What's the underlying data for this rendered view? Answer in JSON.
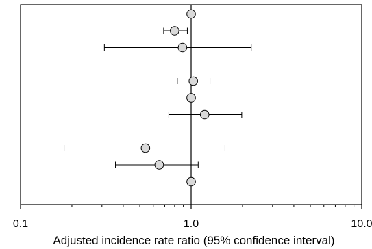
{
  "chart_data": {
    "type": "scatter",
    "subtype": "forest-plot",
    "x_scale": "log",
    "xlim": [
      0.1,
      10.0
    ],
    "xlabel": "Adjusted incidence rate ratio (95% confidence interval)",
    "ylabel": "",
    "title": "",
    "x_tick_labels": [
      "0.1",
      "1.0",
      "10.0"
    ],
    "x_tick_values": [
      0.1,
      1.0,
      10.0
    ],
    "reference_line": 1.0,
    "grid": false,
    "legend": "none",
    "groups": [
      {
        "rows": [
          {
            "estimate": 1.0,
            "lower": null,
            "upper": null
          },
          {
            "estimate": 0.8,
            "lower": 0.69,
            "upper": 0.95
          },
          {
            "estimate": 0.89,
            "lower": 0.31,
            "upper": 2.25
          }
        ]
      },
      {
        "rows": [
          {
            "estimate": 1.03,
            "lower": 0.83,
            "upper": 1.29
          },
          {
            "estimate": 1.0,
            "lower": null,
            "upper": null
          },
          {
            "estimate": 1.2,
            "lower": 0.74,
            "upper": 1.98
          }
        ]
      },
      {
        "rows": [
          {
            "estimate": 0.54,
            "lower": 0.18,
            "upper": 1.58
          },
          {
            "estimate": 0.65,
            "lower": 0.36,
            "upper": 1.1
          },
          {
            "estimate": 1.0,
            "lower": null,
            "upper": null
          }
        ]
      }
    ],
    "colors": {
      "marker_fill": "#d9d9d9",
      "line": "#000000"
    }
  }
}
